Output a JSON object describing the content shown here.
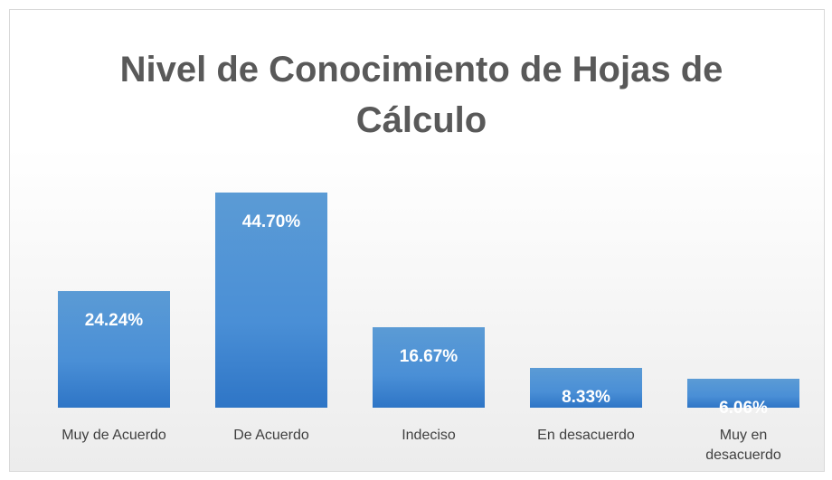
{
  "chart_data": {
    "type": "bar",
    "title": "Nivel de Conocimiento de Hojas de Cálculo",
    "categories": [
      "Muy de Acuerdo",
      "De Acuerdo",
      "Indeciso",
      "En desacuerdo",
      "Muy en desacuerdo"
    ],
    "values": [
      24.24,
      44.7,
      16.67,
      8.33,
      6.06
    ],
    "value_labels": [
      "24.24%",
      "44.70%",
      "16.67%",
      "8.33%",
      "6.06%"
    ],
    "color": "#4a8fd6",
    "ylim": [
      0,
      50
    ]
  }
}
